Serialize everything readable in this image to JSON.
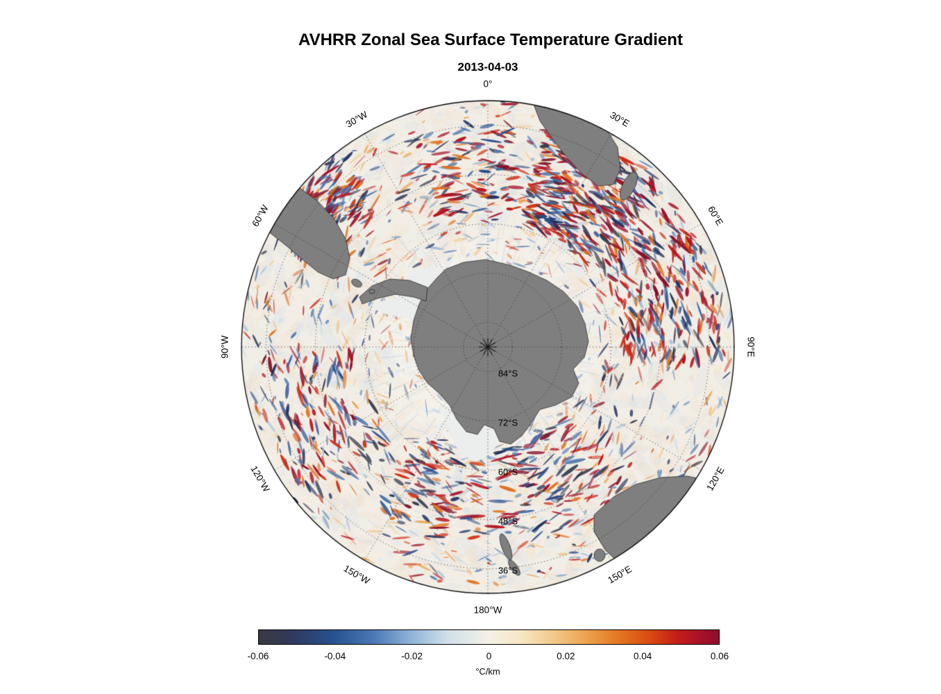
{
  "figure": {
    "title": "AVHRR Zonal Sea Surface Temperature Gradient",
    "subtitle": "2013-04-03"
  },
  "chart_data": {
    "type": "heatmap",
    "projection": "south polar stereographic",
    "title": "AVHRR Zonal Sea Surface Temperature Gradient",
    "date": "2013-04-03",
    "variable": "Zonal sea surface temperature gradient from AVHRR",
    "units": "°C/km",
    "value_range": [
      -0.06,
      0.06
    ],
    "colorbar": {
      "orientation": "horizontal",
      "ticks": [
        "-0.06",
        "-0.04",
        "-0.02",
        "0",
        "0.02",
        "0.04",
        "0.06"
      ],
      "tick_values": [
        -0.06,
        -0.04,
        -0.02,
        0,
        0.02,
        0.04,
        0.06
      ],
      "unit_label": "°C/km",
      "stops": [
        {
          "pos": 0.0,
          "color": "#3a3a42"
        },
        {
          "pos": 0.07,
          "color": "#30395c"
        },
        {
          "pos": 0.16,
          "color": "#27508f"
        },
        {
          "pos": 0.25,
          "color": "#4b79b5"
        },
        {
          "pos": 0.33,
          "color": "#8fb3d8"
        },
        {
          "pos": 0.41,
          "color": "#cfdfe8"
        },
        {
          "pos": 0.5,
          "color": "#f4f1e6"
        },
        {
          "pos": 0.57,
          "color": "#f6e7c4"
        },
        {
          "pos": 0.64,
          "color": "#f2c98a"
        },
        {
          "pos": 0.71,
          "color": "#eda44f"
        },
        {
          "pos": 0.78,
          "color": "#e47722"
        },
        {
          "pos": 0.85,
          "color": "#d94a12"
        },
        {
          "pos": 0.91,
          "color": "#c41d17"
        },
        {
          "pos": 0.96,
          "color": "#a81128"
        },
        {
          "pos": 1.0,
          "color": "#8c0f2c"
        }
      ]
    },
    "graticule": {
      "style": "dotted",
      "lon_spoke_interval_deg": 30,
      "map_edge_latitude": "30°S",
      "lat_rings": [
        {
          "label": "84°S",
          "radius_frac": 0.1
        },
        {
          "label": "72°S",
          "radius_frac": 0.3
        },
        {
          "label": "60°S",
          "radius_frac": 0.5
        },
        {
          "label": "48°S",
          "radius_frac": 0.7
        },
        {
          "label": "36°S",
          "radius_frac": 0.9
        }
      ],
      "lon_labels": [
        {
          "label": "0°",
          "bearing_deg": 0
        },
        {
          "label": "30°E",
          "bearing_deg": 30
        },
        {
          "label": "60°E",
          "bearing_deg": 60
        },
        {
          "label": "90°E",
          "bearing_deg": 90
        },
        {
          "label": "120°E",
          "bearing_deg": 120
        },
        {
          "label": "150°E",
          "bearing_deg": 150
        },
        {
          "label": "180°W",
          "bearing_deg": 180
        },
        {
          "label": "150°W",
          "bearing_deg": 210
        },
        {
          "label": "120°W",
          "bearing_deg": 240
        },
        {
          "label": "90°W",
          "bearing_deg": 270
        },
        {
          "label": "60°W",
          "bearing_deg": 300
        },
        {
          "label": "30°W",
          "bearing_deg": 330
        }
      ]
    },
    "land_color": "#7f7f7f",
    "sea_ice_color": "#eceded",
    "ocean_base_color": "#f2eee6",
    "land_features": [
      "Antarctica",
      "South America (Patagonia)",
      "Africa (southern tip)",
      "Madagascar",
      "Australia",
      "Tasmania",
      "New Zealand"
    ]
  }
}
